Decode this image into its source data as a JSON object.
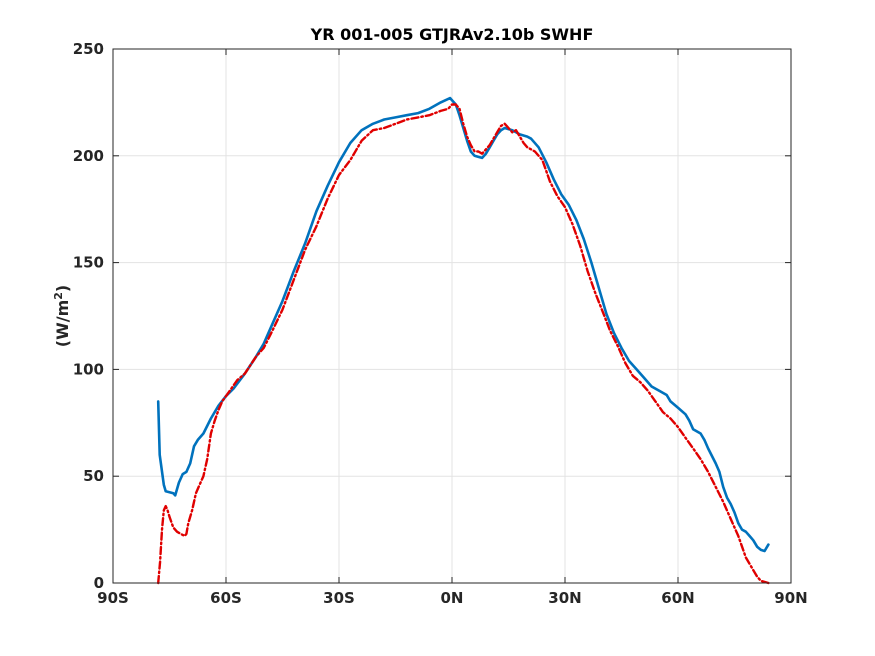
{
  "chart_data": {
    "type": "line",
    "title": "YR 001-005 GTJRAv2.10b    SWHF",
    "ylabel": "(W/m",
    "ylabel_superscript": "2",
    "ylabel_suffix": ")",
    "xlabel": "",
    "xlim": [
      -90,
      90
    ],
    "ylim": [
      0,
      250
    ],
    "grid": true,
    "xticks": [
      {
        "value": -90,
        "label": "90S"
      },
      {
        "value": -60,
        "label": "60S"
      },
      {
        "value": -30,
        "label": "30S"
      },
      {
        "value": 0,
        "label": "0N"
      },
      {
        "value": 30,
        "label": "30N"
      },
      {
        "value": 60,
        "label": "60N"
      },
      {
        "value": 90,
        "label": "90N"
      }
    ],
    "yticks": [
      {
        "value": 0,
        "label": "0"
      },
      {
        "value": 50,
        "label": "50"
      },
      {
        "value": 100,
        "label": "100"
      },
      {
        "value": 150,
        "label": "150"
      },
      {
        "value": 200,
        "label": "200"
      },
      {
        "value": 250,
        "label": "250"
      }
    ],
    "series": [
      {
        "color": "#0072bd",
        "style": "solid",
        "points": [
          [
            -78,
            85
          ],
          [
            -77.6,
            60
          ],
          [
            -76.5,
            46
          ],
          [
            -76,
            43
          ],
          [
            -75,
            42.5
          ],
          [
            -74,
            42
          ],
          [
            -73.5,
            41
          ],
          [
            -72.5,
            47
          ],
          [
            -71.5,
            51
          ],
          [
            -70.5,
            52
          ],
          [
            -69.5,
            56
          ],
          [
            -68.5,
            64
          ],
          [
            -67.5,
            67
          ],
          [
            -66,
            70
          ],
          [
            -64,
            77
          ],
          [
            -62,
            83
          ],
          [
            -60,
            87.5
          ],
          [
            -58,
            91
          ],
          [
            -55,
            98
          ],
          [
            -52,
            106
          ],
          [
            -50,
            112
          ],
          [
            -48,
            120
          ],
          [
            -45,
            132
          ],
          [
            -42,
            146
          ],
          [
            -39,
            159
          ],
          [
            -36,
            174
          ],
          [
            -33,
            186
          ],
          [
            -30,
            197
          ],
          [
            -27,
            206
          ],
          [
            -24,
            212
          ],
          [
            -21,
            215
          ],
          [
            -18,
            217
          ],
          [
            -15,
            218
          ],
          [
            -12,
            219
          ],
          [
            -9,
            220
          ],
          [
            -6,
            222
          ],
          [
            -3,
            225
          ],
          [
            -0.5,
            227
          ],
          [
            1,
            224
          ],
          [
            2,
            219
          ],
          [
            3,
            213
          ],
          [
            4,
            207
          ],
          [
            5,
            202
          ],
          [
            6,
            200
          ],
          [
            7,
            199.5
          ],
          [
            8,
            199
          ],
          [
            9,
            201
          ],
          [
            10,
            204
          ],
          [
            11,
            207
          ],
          [
            12,
            210
          ],
          [
            13,
            212
          ],
          [
            14,
            213
          ],
          [
            15,
            212.5
          ],
          [
            16,
            212
          ],
          [
            17,
            211
          ],
          [
            18,
            210
          ],
          [
            20,
            209
          ],
          [
            21,
            208
          ],
          [
            23,
            204
          ],
          [
            25,
            197
          ],
          [
            27,
            189
          ],
          [
            29,
            182
          ],
          [
            31,
            177
          ],
          [
            33,
            170
          ],
          [
            35,
            161
          ],
          [
            37,
            150
          ],
          [
            39,
            138
          ],
          [
            41,
            126
          ],
          [
            43,
            117
          ],
          [
            45,
            110
          ],
          [
            47,
            104
          ],
          [
            49,
            100
          ],
          [
            51,
            96
          ],
          [
            53,
            92
          ],
          [
            55,
            90
          ],
          [
            57,
            88
          ],
          [
            58,
            85
          ],
          [
            60,
            82
          ],
          [
            62,
            79
          ],
          [
            63,
            76
          ],
          [
            64,
            72
          ],
          [
            66,
            70
          ],
          [
            67,
            67
          ],
          [
            68,
            63
          ],
          [
            70,
            56
          ],
          [
            71,
            52
          ],
          [
            72,
            45
          ],
          [
            73,
            40
          ],
          [
            74,
            37
          ],
          [
            75,
            33
          ],
          [
            76,
            28
          ],
          [
            77,
            25
          ],
          [
            78,
            24
          ],
          [
            79,
            22
          ],
          [
            80,
            20
          ],
          [
            81,
            17
          ],
          [
            82,
            15.5
          ],
          [
            83,
            15
          ],
          [
            84,
            18
          ]
        ]
      },
      {
        "color": "#e00000",
        "style": "dashdot",
        "points": [
          [
            -78,
            0
          ],
          [
            -77.5,
            10
          ],
          [
            -77,
            25
          ],
          [
            -76.5,
            34
          ],
          [
            -76,
            36
          ],
          [
            -75.5,
            34
          ],
          [
            -75,
            31
          ],
          [
            -74,
            26
          ],
          [
            -73,
            24
          ],
          [
            -72,
            23
          ],
          [
            -71,
            22
          ],
          [
            -70.5,
            23
          ],
          [
            -70,
            28
          ],
          [
            -69,
            34
          ],
          [
            -68,
            42
          ],
          [
            -67,
            46
          ],
          [
            -66,
            50
          ],
          [
            -65,
            58
          ],
          [
            -64,
            70
          ],
          [
            -63,
            76
          ],
          [
            -62,
            81
          ],
          [
            -61,
            85
          ],
          [
            -59,
            90
          ],
          [
            -57,
            95
          ],
          [
            -55,
            98
          ],
          [
            -52,
            106
          ],
          [
            -50,
            110
          ],
          [
            -48,
            117
          ],
          [
            -45,
            128
          ],
          [
            -42,
            142
          ],
          [
            -39,
            156
          ],
          [
            -36,
            167
          ],
          [
            -33,
            180
          ],
          [
            -30,
            191
          ],
          [
            -27,
            198
          ],
          [
            -24,
            207
          ],
          [
            -21,
            212
          ],
          [
            -18,
            213
          ],
          [
            -15,
            215
          ],
          [
            -12,
            217
          ],
          [
            -9,
            218
          ],
          [
            -6,
            219
          ],
          [
            -3,
            221
          ],
          [
            -1,
            222
          ],
          [
            0,
            224
          ],
          [
            1,
            224
          ],
          [
            2,
            222
          ],
          [
            3,
            215
          ],
          [
            4,
            209
          ],
          [
            5,
            205
          ],
          [
            6,
            202
          ],
          [
            7,
            202
          ],
          [
            8,
            201
          ],
          [
            9,
            203
          ],
          [
            10,
            205
          ],
          [
            11,
            208
          ],
          [
            12,
            211
          ],
          [
            13,
            214
          ],
          [
            14,
            215
          ],
          [
            15,
            213
          ],
          [
            16,
            211
          ],
          [
            17,
            212
          ],
          [
            18,
            209
          ],
          [
            19,
            206
          ],
          [
            20,
            204
          ],
          [
            22,
            202
          ],
          [
            24,
            198
          ],
          [
            26,
            188
          ],
          [
            28,
            181
          ],
          [
            30,
            176
          ],
          [
            32,
            168
          ],
          [
            34,
            158
          ],
          [
            36,
            146
          ],
          [
            38,
            136
          ],
          [
            40,
            127
          ],
          [
            42,
            118
          ],
          [
            44,
            111
          ],
          [
            46,
            103
          ],
          [
            48,
            97
          ],
          [
            50,
            94
          ],
          [
            52,
            90
          ],
          [
            54,
            85
          ],
          [
            56,
            80
          ],
          [
            58,
            77
          ],
          [
            60,
            73
          ],
          [
            62,
            68
          ],
          [
            64,
            63
          ],
          [
            66,
            58
          ],
          [
            68,
            52
          ],
          [
            70,
            45
          ],
          [
            72,
            38
          ],
          [
            74,
            30
          ],
          [
            76,
            22
          ],
          [
            78,
            12
          ],
          [
            80,
            6
          ],
          [
            81,
            3
          ],
          [
            82,
            1
          ],
          [
            83,
            0.5
          ],
          [
            84,
            0
          ]
        ]
      }
    ]
  }
}
